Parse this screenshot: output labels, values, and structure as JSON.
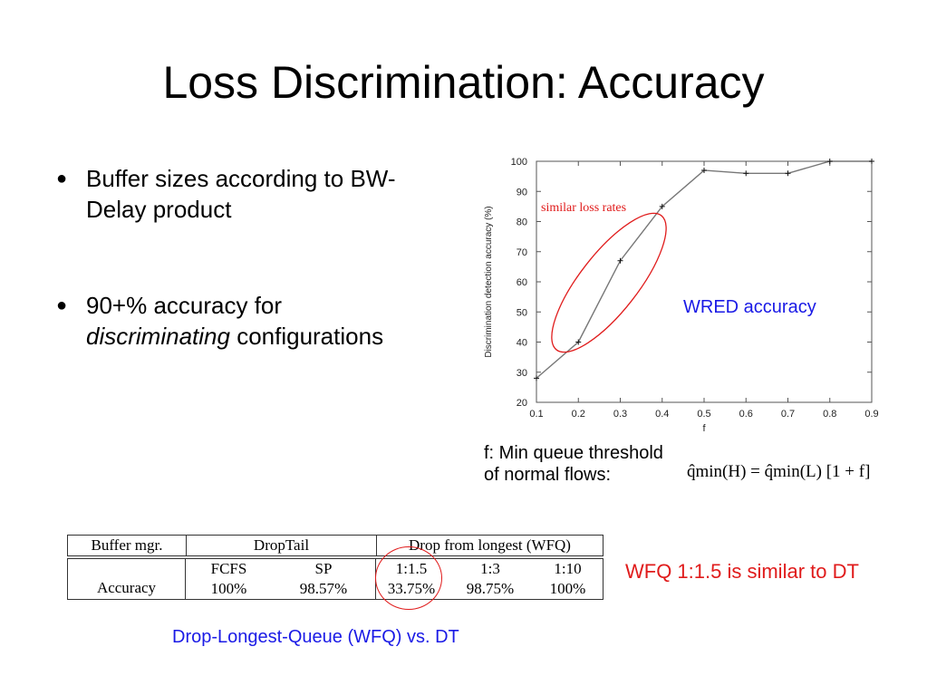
{
  "slide": {
    "title": "Loss Discrimination: Accuracy"
  },
  "bullets": [
    {
      "text": "Buffer sizes according to BW-Delay product"
    },
    {
      "text_italic": "discriminating",
      "text_before": "90+% accuracy for",
      "text_after": "configurations"
    }
  ],
  "annotations": {
    "similar_loss": "similar loss rates",
    "wred": "WRED accuracy",
    "f_note_line1": "f: Min queue threshold",
    "f_note_line2": "of normal flows:",
    "formula": "q̂min(H) = q̂min(L) [1 + f]",
    "wfq_note": "WFQ 1:1.5 is similar to DT",
    "caption": "Drop-Longest-Queue (WFQ) vs. DT"
  },
  "colors": {
    "red": "#e01b1b",
    "blue": "#1a1ae6"
  },
  "table": {
    "header": [
      "Buffer mgr.",
      "DropTail",
      "Drop from longest (WFQ)"
    ],
    "row_label": "Accuracy",
    "subheaders": [
      "FCFS",
      "SP",
      "1:1.5",
      "1:3",
      "1:10"
    ],
    "values": [
      "100%",
      "98.57%",
      "33.75%",
      "98.75%",
      "100%"
    ]
  },
  "chart_data": {
    "type": "line",
    "xlabel": "f",
    "ylabel": "Discrimination detection accuracy (%)",
    "x": [
      0.1,
      0.2,
      0.3,
      0.4,
      0.5,
      0.6,
      0.7,
      0.8,
      0.9
    ],
    "series": [
      {
        "values": [
          28,
          40,
          67,
          85,
          97,
          96,
          96,
          100,
          100
        ]
      }
    ],
    "xticks": [
      "0.1",
      "0.2",
      "0.3",
      "0.4",
      "0.5",
      "0.6",
      "0.7",
      "0.8",
      "0.9"
    ],
    "yticks": [
      "20",
      "30",
      "40",
      "50",
      "60",
      "70",
      "80",
      "90",
      "100"
    ],
    "xlim": [
      0.1,
      0.9
    ],
    "ylim": [
      20,
      100
    ],
    "grid": false
  }
}
